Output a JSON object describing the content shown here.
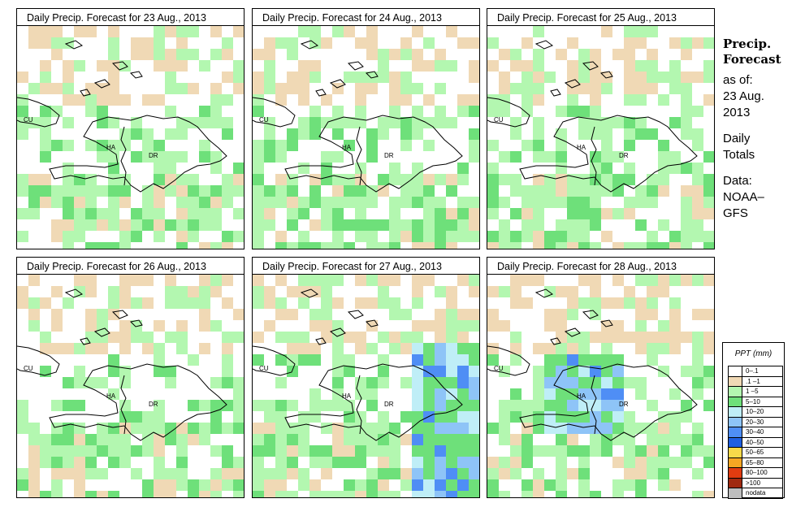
{
  "panels": [
    {
      "title": "Daily Precip. Forecast for  23 Aug., 2013",
      "seed": 11
    },
    {
      "title": "Daily Precip. Forecast for  24 Aug., 2013",
      "seed": 23
    },
    {
      "title": "Daily Precip. Forecast for  25 Aug., 2013",
      "seed": 37
    },
    {
      "title": "Daily Precip. Forecast for  26 Aug., 2013",
      "seed": 41
    },
    {
      "title": "Daily Precip. Forecast for  27 Aug., 2013",
      "seed": 53
    },
    {
      "title": "Daily Precip. Forecast for  28 Aug., 2013",
      "seed": 67
    }
  ],
  "map_labels": {
    "cu": "CU",
    "ha": "HA",
    "dr": "DR"
  },
  "sidebar": {
    "title_line1": "Precip.",
    "title_line2": "Forecast",
    "asof": "as of:",
    "date1": "23 Aug.",
    "date2": "2013",
    "daily1": "Daily",
    "daily2": "Totals",
    "data1": "Data:",
    "data2": "NOAA–",
    "data3": "GFS"
  },
  "legend": {
    "title": "PPT (mm)",
    "items": [
      {
        "label": "0–.1",
        "color": "#ffffff"
      },
      {
        "label": ".1 –1",
        "color": "#f0d9b5"
      },
      {
        "label": "1 –5",
        "color": "#b3f7b0"
      },
      {
        "label": "5–10",
        "color": "#6ee07a"
      },
      {
        "label": "10–20",
        "color": "#bfeef7"
      },
      {
        "label": "20–30",
        "color": "#8ec4f7"
      },
      {
        "label": "30–40",
        "color": "#4f8ef5"
      },
      {
        "label": "40–50",
        "color": "#1f5fe0"
      },
      {
        "label": "50–65",
        "color": "#f7d94a"
      },
      {
        "label": "65–80",
        "color": "#f5a623"
      },
      {
        "label": "80–100",
        "color": "#e03c10"
      },
      {
        "label": ">100",
        "color": "#a02a10"
      },
      {
        "label": "nodata",
        "color": "#bdbdbd"
      }
    ]
  }
}
